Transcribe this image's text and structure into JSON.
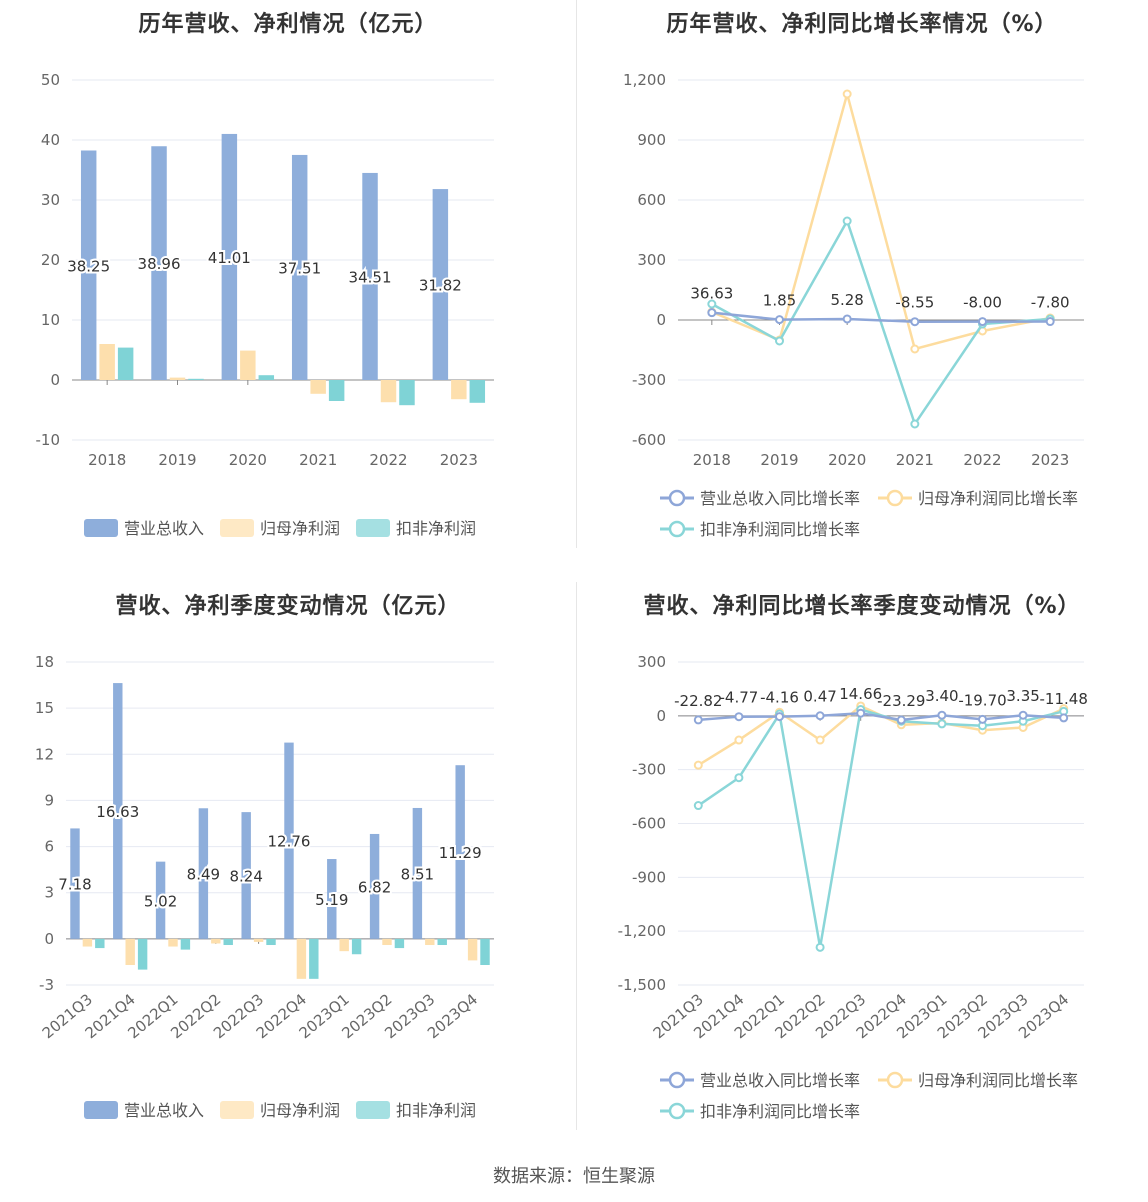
{
  "source": "数据来源：恒生聚源",
  "colors": {
    "revenue": "#8eaedb",
    "parent": "#fddfad",
    "nonrecurring": "#7fd3d6",
    "grid": "#e6e9f2",
    "axis": "#888888",
    "text": "#666666"
  },
  "chart_data": [
    {
      "type": "bar",
      "title": "历年营收、净利情况（亿元）",
      "categories": [
        "2018",
        "2019",
        "2020",
        "2021",
        "2022",
        "2023"
      ],
      "ylim": [
        -10,
        50
      ],
      "yticks": [
        -10,
        0,
        10,
        20,
        30,
        40,
        50
      ],
      "series": [
        {
          "name": "营业总收入",
          "values": [
            38.25,
            38.96,
            41.01,
            37.51,
            34.51,
            31.82
          ],
          "labels": [
            "38.25",
            "38.96",
            "41.01",
            "37.51",
            "34.51",
            "31.82"
          ]
        },
        {
          "name": "归母净利润",
          "values": [
            6.0,
            0.4,
            4.9,
            -2.3,
            -3.7,
            -3.2
          ]
        },
        {
          "name": "扣非净利润",
          "values": [
            5.4,
            0.2,
            0.8,
            -3.5,
            -4.2,
            -3.8
          ]
        }
      ],
      "grid": true,
      "legend": "bottom"
    },
    {
      "type": "line",
      "title": "历年营收、净利同比增长率情况（%）",
      "categories": [
        "2018",
        "2019",
        "2020",
        "2021",
        "2022",
        "2023"
      ],
      "ylim": [
        -600,
        1200
      ],
      "yticks": [
        -600,
        -300,
        0,
        300,
        600,
        900,
        1200
      ],
      "yticklabels": [
        "-600",
        "-300",
        "0",
        "300",
        "600",
        "900",
        "1,200"
      ],
      "series": [
        {
          "name": "营业总收入同比增长率",
          "values": [
            36.63,
            1.85,
            5.28,
            -8.55,
            -8.0,
            -7.8
          ],
          "labels": [
            "36.63",
            "1.85",
            "5.28",
            "-8.55",
            "-8.00",
            "-7.80"
          ]
        },
        {
          "name": "归母净利润同比增长率",
          "values": [
            40,
            -100,
            1130,
            -145,
            -55,
            10
          ]
        },
        {
          "name": "扣非净利润同比增长率",
          "values": [
            80,
            -105,
            495,
            -520,
            -20,
            5
          ]
        }
      ],
      "grid": true,
      "legend": "bottom"
    },
    {
      "type": "bar",
      "title": "营收、净利季度变动情况（亿元）",
      "categories": [
        "2021Q3",
        "2021Q4",
        "2022Q1",
        "2022Q2",
        "2022Q3",
        "2022Q4",
        "2023Q1",
        "2023Q2",
        "2023Q3",
        "2023Q4"
      ],
      "ylim": [
        -3,
        18
      ],
      "yticks": [
        -3,
        0,
        3,
        6,
        9,
        12,
        15,
        18
      ],
      "series": [
        {
          "name": "营业总收入",
          "values": [
            7.18,
            16.63,
            5.02,
            8.49,
            8.24,
            12.76,
            5.19,
            6.82,
            8.51,
            11.29
          ],
          "labels": [
            "7.18",
            "16.63",
            "5.02",
            "8.49",
            "8.24",
            "12.76",
            "5.19",
            "6.82",
            "8.51",
            "11.29"
          ]
        },
        {
          "name": "归母净利润",
          "values": [
            -0.5,
            -1.7,
            -0.5,
            -0.3,
            -0.2,
            -2.6,
            -0.8,
            -0.4,
            -0.4,
            -1.4
          ]
        },
        {
          "name": "扣非净利润",
          "values": [
            -0.6,
            -2.0,
            -0.7,
            -0.4,
            -0.4,
            -2.6,
            -1.0,
            -0.6,
            -0.4,
            -1.7
          ]
        }
      ],
      "grid": true,
      "legend": "bottom"
    },
    {
      "type": "line",
      "title": "营收、净利同比增长率季度变动情况（%）",
      "categories": [
        "2021Q3",
        "2021Q4",
        "2022Q1",
        "2022Q2",
        "2022Q3",
        "2022Q4",
        "2023Q1",
        "2023Q2",
        "2023Q3",
        "2023Q4"
      ],
      "ylim": [
        -1500,
        300
      ],
      "yticks": [
        -1500,
        -1200,
        -900,
        -600,
        -300,
        0,
        300
      ],
      "yticklabels": [
        "-1,500",
        "-1,200",
        "-900",
        "-600",
        "-300",
        "0",
        "300"
      ],
      "series": [
        {
          "name": "营业总收入同比增长率",
          "values": [
            -22.82,
            -4.77,
            -4.16,
            0.47,
            14.66,
            -23.29,
            3.4,
            -19.7,
            3.35,
            -11.48
          ],
          "labels": [
            "-22.82",
            "-4.77",
            "-4.16",
            "0.47",
            "14.66",
            "-23.29",
            "3.40",
            "-19.70",
            "3.35",
            "-11.48"
          ]
        },
        {
          "name": "归母净利润同比增长率",
          "values": [
            -275,
            -135,
            20,
            -135,
            55,
            -50,
            -40,
            -80,
            -65,
            40
          ]
        },
        {
          "name": "扣非净利润同比增长率",
          "values": [
            -500,
            -345,
            10,
            -1290,
            35,
            -30,
            -45,
            -55,
            -30,
            25
          ]
        }
      ],
      "grid": true,
      "legend": "bottom"
    }
  ]
}
